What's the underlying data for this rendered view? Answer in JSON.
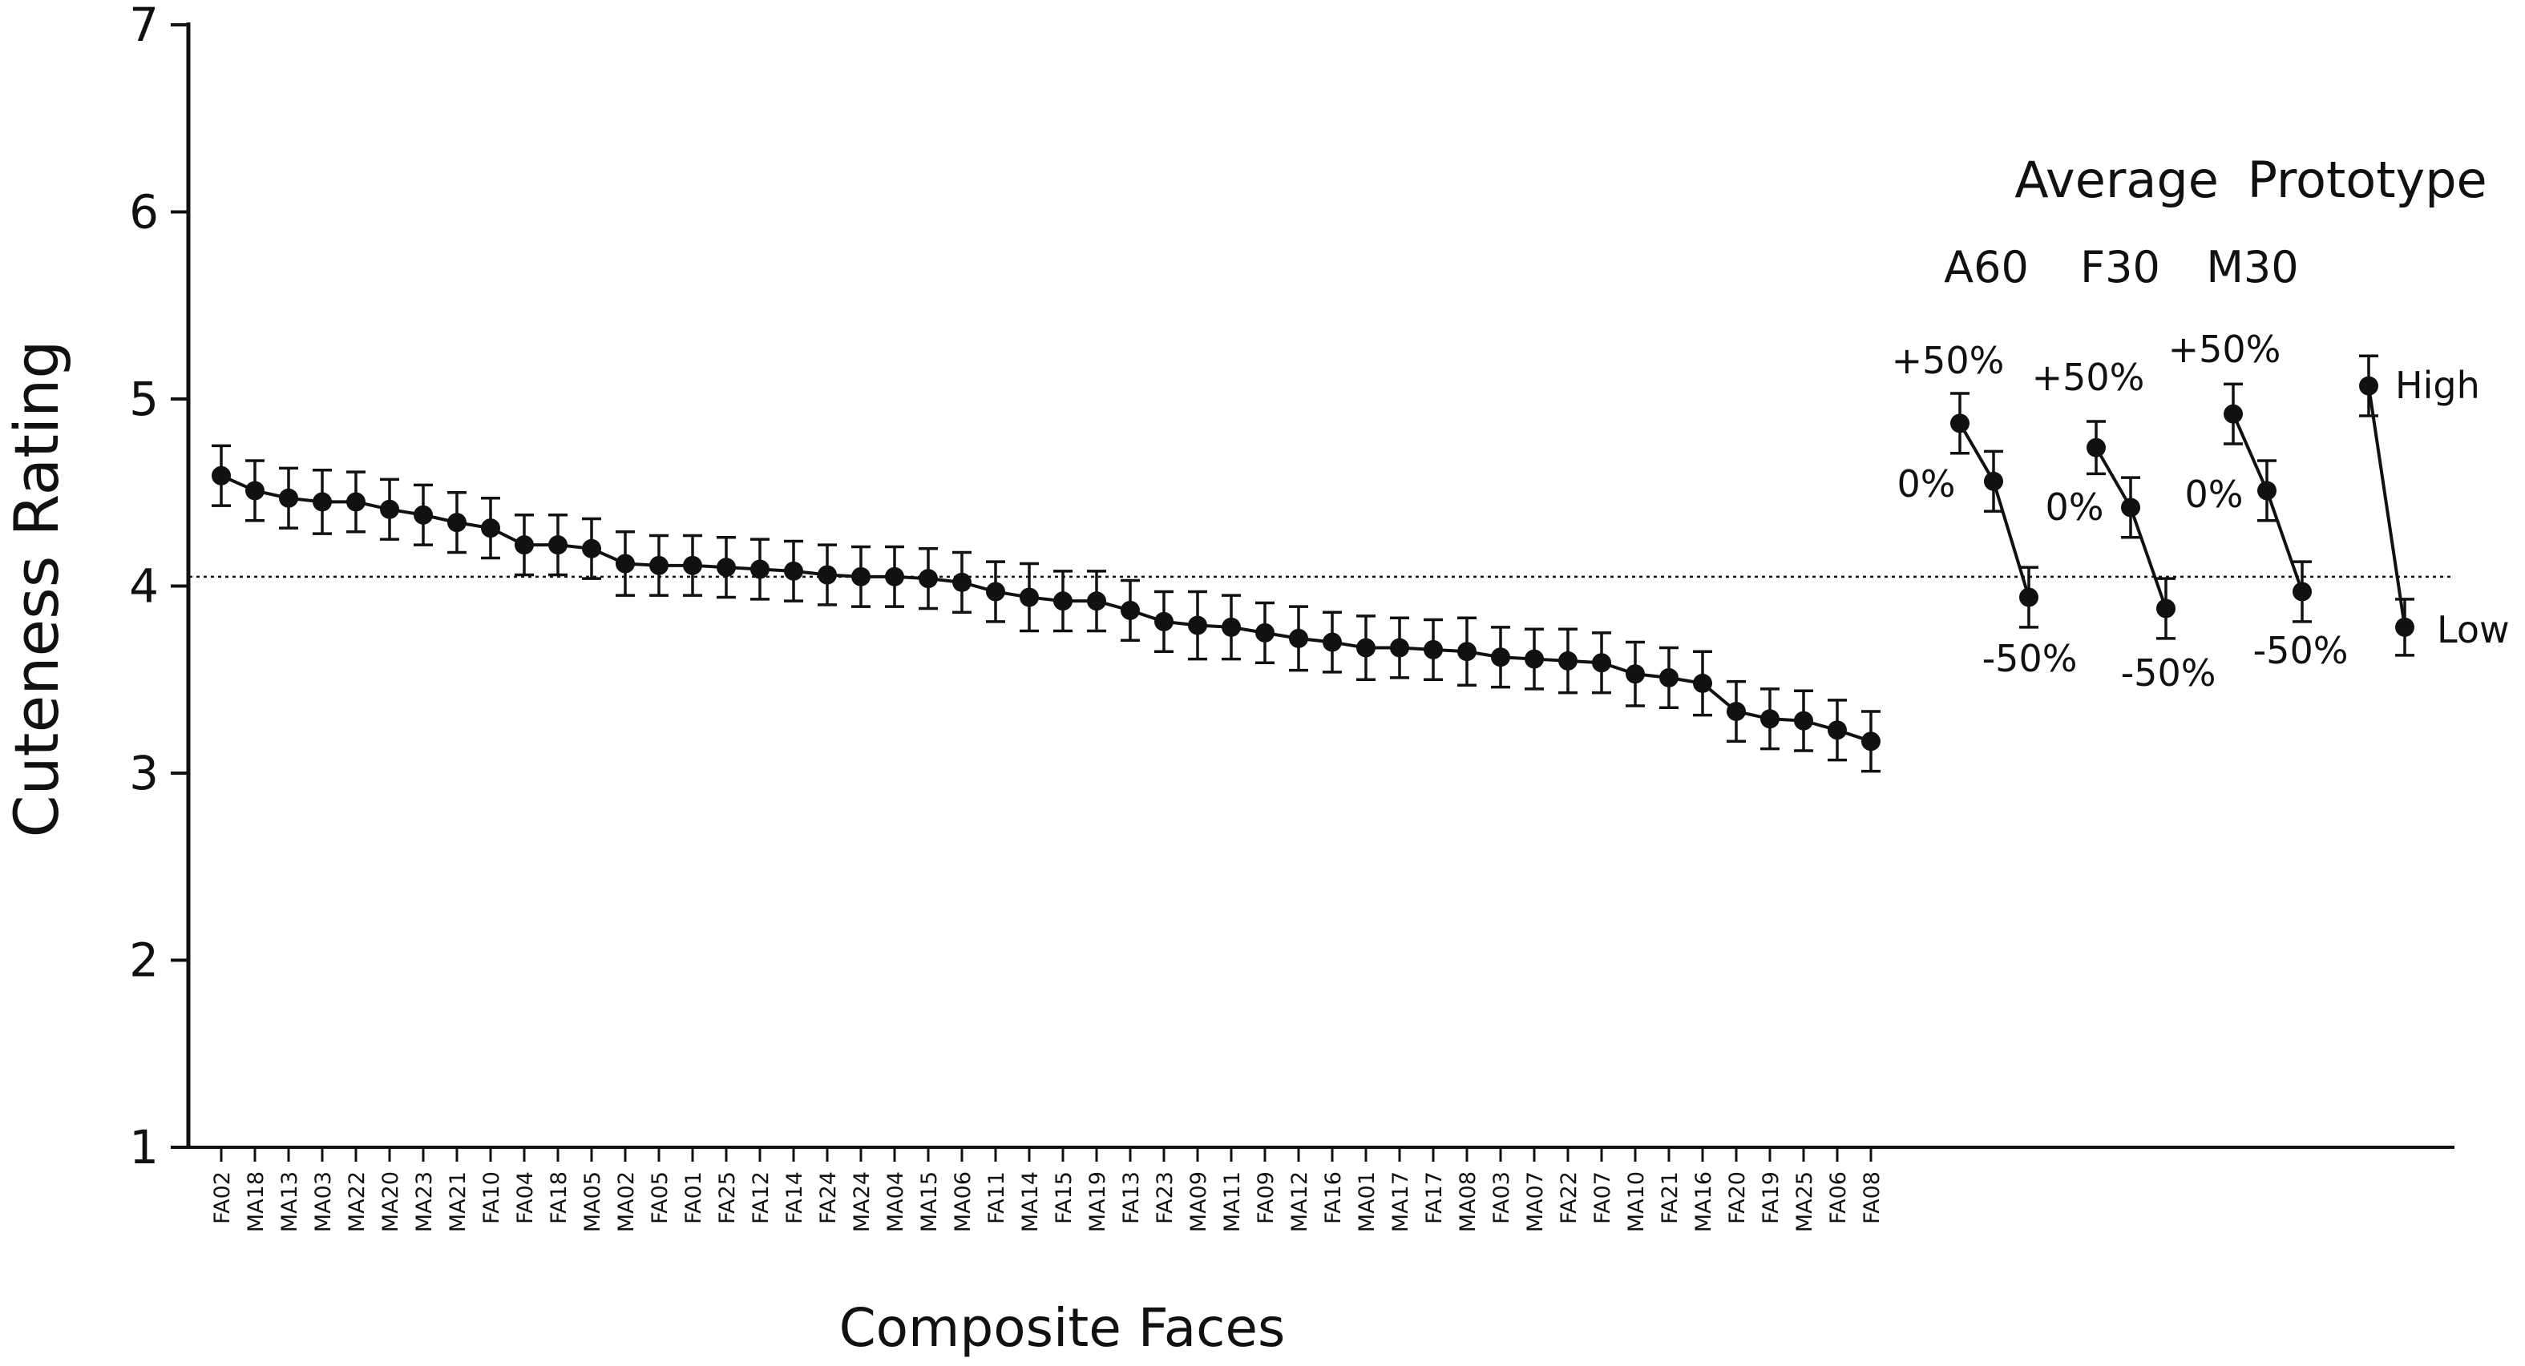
{
  "chart_data": {
    "type": "scatter",
    "ylabel": "Cuteness Rating",
    "xlabel": "Composite Faces",
    "ylim": [
      1,
      7
    ],
    "yticks": [
      1,
      2,
      3,
      4,
      5,
      6,
      7
    ],
    "grid": false,
    "reference_line": 4.05,
    "composites": {
      "categories": [
        "FA02",
        "MA18",
        "MA13",
        "MA03",
        "MA22",
        "MA20",
        "MA23",
        "MA21",
        "FA10",
        "FA04",
        "FA18",
        "MA05",
        "MA02",
        "FA05",
        "FA01",
        "FA25",
        "FA12",
        "FA14",
        "FA24",
        "MA24",
        "MA04",
        "MA15",
        "MA06",
        "FA11",
        "MA14",
        "FA15",
        "MA19",
        "FA13",
        "FA23",
        "MA09",
        "MA11",
        "FA09",
        "MA12",
        "FA16",
        "MA01",
        "MA17",
        "FA17",
        "MA08",
        "FA03",
        "MA07",
        "FA22",
        "FA07",
        "MA10",
        "FA21",
        "MA16",
        "FA20",
        "FA19",
        "MA25",
        "FA06",
        "FA08"
      ],
      "values": [
        4.59,
        4.51,
        4.47,
        4.45,
        4.45,
        4.41,
        4.38,
        4.34,
        4.31,
        4.22,
        4.22,
        4.2,
        4.12,
        4.11,
        4.11,
        4.1,
        4.09,
        4.08,
        4.06,
        4.05,
        4.05,
        4.04,
        4.02,
        3.97,
        3.94,
        3.92,
        3.92,
        3.87,
        3.81,
        3.79,
        3.78,
        3.75,
        3.72,
        3.7,
        3.67,
        3.67,
        3.66,
        3.65,
        3.62,
        3.61,
        3.6,
        3.59,
        3.53,
        3.51,
        3.48,
        3.33,
        3.29,
        3.28,
        3.23,
        3.17
      ],
      "errors": [
        0.16,
        0.16,
        0.16,
        0.17,
        0.16,
        0.16,
        0.16,
        0.16,
        0.16,
        0.16,
        0.16,
        0.16,
        0.17,
        0.16,
        0.16,
        0.16,
        0.16,
        0.16,
        0.16,
        0.16,
        0.16,
        0.16,
        0.16,
        0.16,
        0.18,
        0.16,
        0.16,
        0.16,
        0.16,
        0.18,
        0.17,
        0.16,
        0.17,
        0.16,
        0.17,
        0.16,
        0.16,
        0.18,
        0.16,
        0.16,
        0.17,
        0.16,
        0.17,
        0.16,
        0.17,
        0.16,
        0.16,
        0.16,
        0.16,
        0.16
      ]
    },
    "average_prototype": {
      "title": "Average Prototype",
      "groups": [
        {
          "name": "A60",
          "points": [
            {
              "label": "+50%",
              "value": 4.87,
              "error": 0.16
            },
            {
              "label": "0%",
              "value": 4.56,
              "error": 0.16
            },
            {
              "label": "-50%",
              "value": 3.94,
              "error": 0.16
            }
          ]
        },
        {
          "name": "F30",
          "points": [
            {
              "label": "+50%",
              "value": 4.74,
              "error": 0.14
            },
            {
              "label": "0%",
              "value": 4.42,
              "error": 0.16
            },
            {
              "label": "-50%",
              "value": 3.88,
              "error": 0.16
            }
          ]
        },
        {
          "name": "M30",
          "points": [
            {
              "label": "+50%",
              "value": 4.92,
              "error": 0.16
            },
            {
              "label": "0%",
              "value": 4.51,
              "error": 0.16
            },
            {
              "label": "-50%",
              "value": 3.97,
              "error": 0.16
            }
          ]
        },
        {
          "name": "",
          "points": [
            {
              "label": "High",
              "value": 5.07,
              "error": 0.16
            },
            {
              "label": "Low",
              "value": 3.78,
              "error": 0.15
            }
          ]
        }
      ]
    }
  }
}
